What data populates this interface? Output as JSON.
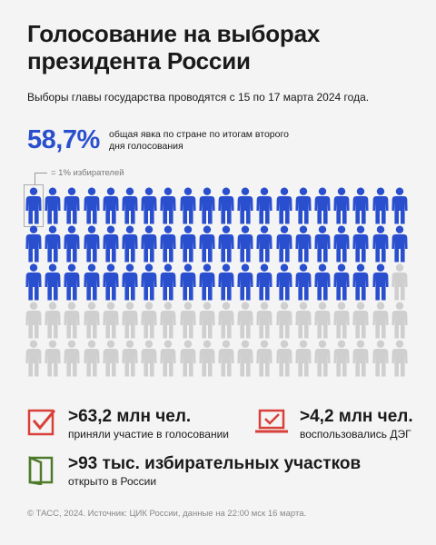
{
  "title": "Голосование на выборах президента России",
  "subtitle": "Выборы главы государства проводятся с 15 по 17 марта 2024 года.",
  "turnout": {
    "value": "58,7%",
    "caption": "общая явка по стране по итогам второго дня голосования",
    "percent": 58.7
  },
  "legend": {
    "label": "= 1% избирателей"
  },
  "grid": {
    "total": 100,
    "filled": 58.7,
    "color_filled": "#2a4fce",
    "color_empty": "#cfcfcf"
  },
  "stats": [
    {
      "value": ">63,2 млн чел.",
      "label": "приняли участие в голосовании",
      "icon": "checkbox-icon",
      "color": "#d9403a"
    },
    {
      "value": ">4,2 млн чел.",
      "label": "воспользовались ДЭГ",
      "icon": "laptop-check-icon",
      "color": "#d9403a"
    },
    {
      "value": ">93 тыс. избирательных участков",
      "label": "открыто в России",
      "icon": "door-icon",
      "color": "#4e7a2a"
    }
  ],
  "footer": "© ТАСС, 2024. Источник: ЦИК России, данные на 22:00 мск 16 марта."
}
